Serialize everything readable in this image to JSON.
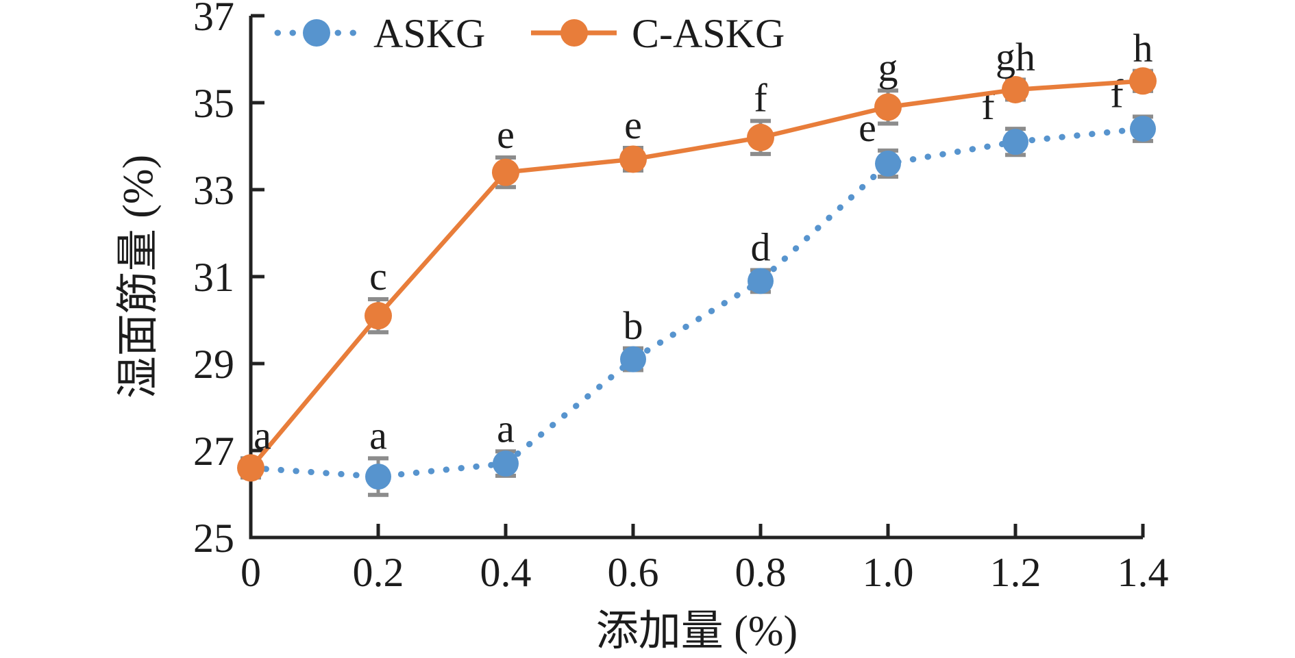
{
  "chart_data": {
    "type": "line",
    "title": "",
    "xlabel": "添加量 (%)",
    "ylabel": "湿面筋量 (%)",
    "x": [
      0,
      0.2,
      0.4,
      0.6,
      0.8,
      1.0,
      1.2,
      1.4
    ],
    "xtick_labels": [
      "0",
      "0.2",
      "0.4",
      "0.6",
      "0.8",
      "1.0",
      "1.2",
      "1.4"
    ],
    "yticks": [
      25,
      27,
      29,
      31,
      33,
      35,
      37
    ],
    "xlim": [
      0,
      1.4
    ],
    "ylim": [
      25,
      37
    ],
    "grid": false,
    "legend_position": "top-left-inside",
    "axis_color": "#222222",
    "error_bar_color": "#8c8c8c",
    "series": [
      {
        "name": "ASKG",
        "color": "#5794CE",
        "line_style": "dotted",
        "marker": "circle",
        "values": [
          26.6,
          26.4,
          26.7,
          29.1,
          30.9,
          33.6,
          34.1,
          34.4
        ],
        "errors": [
          0.2,
          0.42,
          0.28,
          0.25,
          0.25,
          0.3,
          0.3,
          0.28
        ],
        "point_labels": [
          "",
          "a",
          "a",
          "b",
          "d",
          "e",
          "f",
          "f"
        ],
        "label_dx": [
          0,
          0,
          0,
          0,
          0,
          -30,
          -40,
          -38
        ]
      },
      {
        "name": "C-ASKG",
        "color": "#E87D3A",
        "line_style": "solid",
        "marker": "circle",
        "values": [
          26.6,
          30.1,
          33.4,
          33.7,
          34.2,
          34.9,
          35.3,
          35.5
        ],
        "errors": [
          0.22,
          0.38,
          0.34,
          0.26,
          0.38,
          0.38,
          0.23,
          0.23
        ],
        "point_labels": [
          "a",
          "c",
          "e",
          "e",
          "f",
          "g",
          "gh",
          "h"
        ],
        "label_dx": [
          17,
          0,
          0,
          0,
          0,
          0,
          0,
          0
        ]
      }
    ]
  }
}
